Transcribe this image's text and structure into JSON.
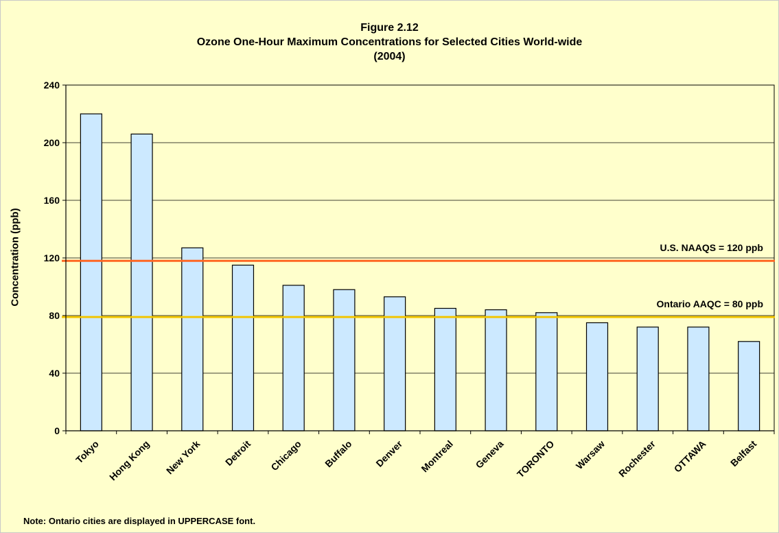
{
  "chart_data": {
    "type": "bar",
    "title": "Figure 2.12",
    "subtitle": "Ozone One-Hour Maximum Concentrations for Selected Cities World-wide",
    "subtitle2": "(2004)",
    "xlabel": "",
    "ylabel": "Concentration (ppb)",
    "ylim": [
      0,
      240
    ],
    "yticks": [
      0,
      40,
      80,
      120,
      160,
      200,
      240
    ],
    "grid": true,
    "categories": [
      "Tokyo",
      "Hong Kong",
      "New York",
      "Detroit",
      "Chicago",
      "Buffalo",
      "Denver",
      "Montreal",
      "Geneva",
      "TORONTO",
      "Warsaw",
      "Rochester",
      "OTTAWA",
      "Belfast"
    ],
    "values": [
      220,
      206,
      127,
      115,
      101,
      98,
      93,
      85,
      84,
      82,
      75,
      72,
      72,
      62
    ],
    "bar_color": "#cce9ff",
    "reference_lines": [
      {
        "label": "U.S. NAAQS = 120 ppb",
        "value": 118,
        "color": "#ff6622"
      },
      {
        "label": "Ontario AAQC = 80 ppb",
        "value": 79,
        "color": "#f2c500"
      }
    ],
    "note": "Note: Ontario cities are displayed in UPPERCASE font."
  }
}
